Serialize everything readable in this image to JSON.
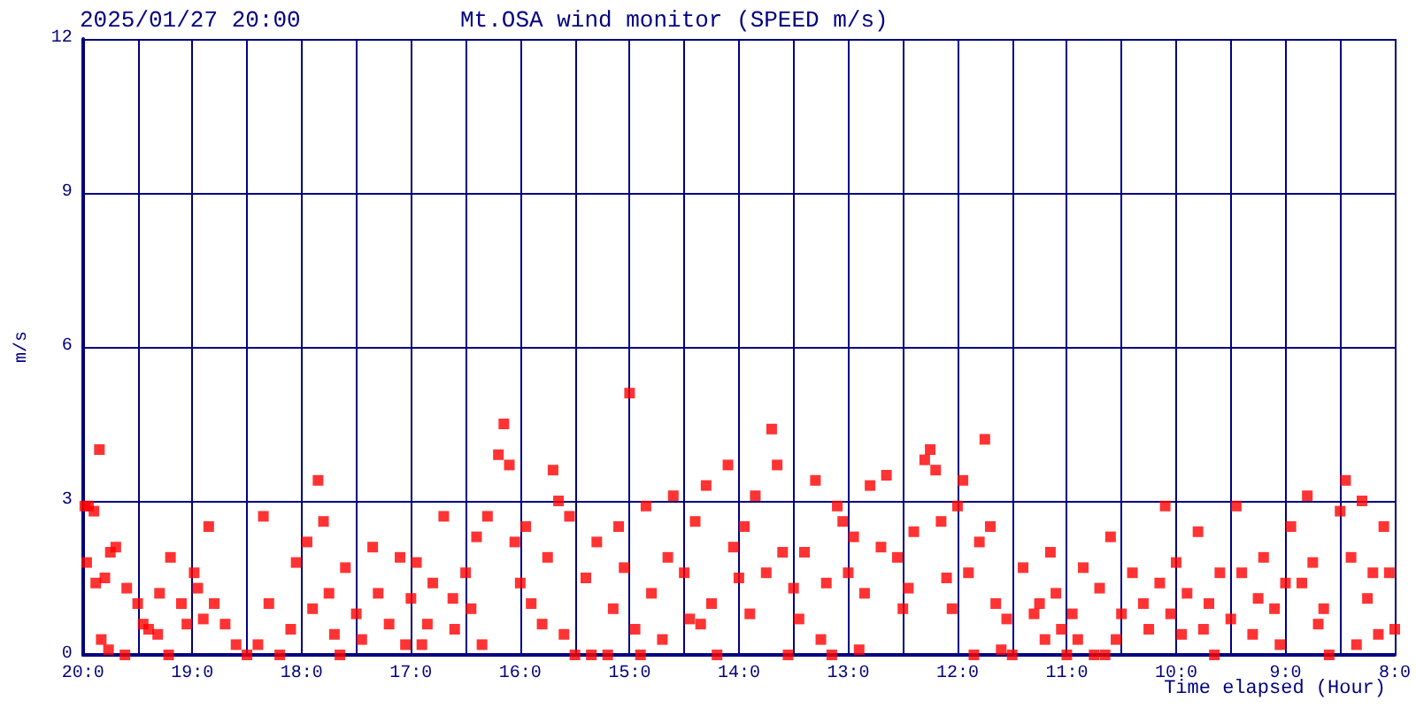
{
  "chart_data": {
    "type": "scatter",
    "title": "Mt.OSA wind monitor (SPEED m/s)",
    "subtitle": "2025/01/27 20:00",
    "xlabel": "Time elapsed (Hour)",
    "ylabel": "m/s",
    "xlim": [
      "2025-01-27T20:00",
      "2025-01-27T08:00"
    ],
    "xticks": [
      {
        "value": "2025-01-27T20:00",
        "label": "20:0"
      },
      {
        "value": "2025-01-27T19:30",
        "label": null
      },
      {
        "value": "2025-01-27T19:00",
        "label": "19:0"
      },
      {
        "value": "2025-01-27T18:30",
        "label": null
      },
      {
        "value": "2025-01-27T18:00",
        "label": "18:0"
      },
      {
        "value": "2025-01-27T17:30",
        "label": null
      },
      {
        "value": "2025-01-27T17:00",
        "label": "17:0"
      },
      {
        "value": "2025-01-27T16:30",
        "label": null
      },
      {
        "value": "2025-01-27T16:00",
        "label": "16:0"
      },
      {
        "value": "2025-01-27T15:30",
        "label": null
      },
      {
        "value": "2025-01-27T15:00",
        "label": "15:0"
      },
      {
        "value": "2025-01-27T14:30",
        "label": null
      },
      {
        "value": "2025-01-27T14:00",
        "label": "14:0"
      },
      {
        "value": "2025-01-27T13:30",
        "label": null
      },
      {
        "value": "2025-01-27T13:00",
        "label": "13:0"
      },
      {
        "value": "2025-01-27T12:30",
        "label": null
      },
      {
        "value": "2025-01-27T12:00",
        "label": "12:0"
      },
      {
        "value": "2025-01-27T11:30",
        "label": null
      },
      {
        "value": "2025-01-27T11:00",
        "label": "11:0"
      },
      {
        "value": "2025-01-27T10:30",
        "label": null
      },
      {
        "value": "2025-01-27T10:00",
        "label": "10:0"
      },
      {
        "value": "2025-01-27T09:30",
        "label": null
      },
      {
        "value": "2025-01-27T09:00",
        "label": "9:0"
      },
      {
        "value": "2025-01-27T08:30",
        "label": null
      },
      {
        "value": "2025-01-27T08:00",
        "label": "8:0"
      }
    ],
    "ylim": [
      0,
      12
    ],
    "yticks": [
      0,
      3,
      6,
      9,
      12
    ],
    "grid": true,
    "marker": "square",
    "series": [
      {
        "color": "#ff0000",
        "x": [
          "2025-01-27T19:59",
          "2025-01-27T19:57",
          "2025-01-27T19:54",
          "2025-01-27T19:51",
          "2025-01-27T19:58",
          "2025-01-27T19:53",
          "2025-01-27T19:48",
          "2025-01-27T19:45",
          "2025-01-27T19:42",
          "2025-01-27T19:36",
          "2025-01-27T19:30",
          "2025-01-27T19:24",
          "2025-01-27T19:18",
          "2025-01-27T19:12",
          "2025-01-27T19:06",
          "2025-01-27T19:50",
          "2025-01-27T19:46",
          "2025-01-27T19:37",
          "2025-01-27T19:27",
          "2025-01-27T19:19",
          "2025-01-27T19:13",
          "2025-01-27T19:03",
          "2025-01-27T18:57",
          "2025-01-27T18:54",
          "2025-01-27T18:51",
          "2025-01-27T18:48",
          "2025-01-27T18:42",
          "2025-01-27T18:36",
          "2025-01-27T18:30",
          "2025-01-27T18:24",
          "2025-01-27T18:21",
          "2025-01-27T18:18",
          "2025-01-27T18:12",
          "2025-01-27T18:06",
          "2025-01-27T18:03",
          "2025-01-27T18:59",
          "2025-01-27T17:57",
          "2025-01-27T17:51",
          "2025-01-27T17:48",
          "2025-01-27T17:45",
          "2025-01-27T17:42",
          "2025-01-27T17:36",
          "2025-01-27T17:30",
          "2025-01-27T17:27",
          "2025-01-27T17:21",
          "2025-01-27T17:18",
          "2025-01-27T17:12",
          "2025-01-27T17:06",
          "2025-01-27T17:03",
          "2025-01-27T17:00",
          "2025-01-27T17:54",
          "2025-01-27T17:39",
          "2025-01-27T16:57",
          "2025-01-27T16:51",
          "2025-01-27T16:48",
          "2025-01-27T16:42",
          "2025-01-27T16:36",
          "2025-01-27T16:30",
          "2025-01-27T16:27",
          "2025-01-27T16:24",
          "2025-01-27T16:18",
          "2025-01-27T16:12",
          "2025-01-27T16:09",
          "2025-01-27T16:06",
          "2025-01-27T16:03",
          "2025-01-27T16:00",
          "2025-01-27T16:21",
          "2025-01-27T16:37",
          "2025-01-27T16:54",
          "2025-01-27T15:57",
          "2025-01-27T15:54",
          "2025-01-27T15:48",
          "2025-01-27T15:42",
          "2025-01-27T15:36",
          "2025-01-27T15:33",
          "2025-01-27T15:30",
          "2025-01-27T15:24",
          "2025-01-27T15:18",
          "2025-01-27T15:12",
          "2025-01-27T15:06",
          "2025-01-27T15:03",
          "2025-01-27T15:00",
          "2025-01-27T15:45",
          "2025-01-27T15:39",
          "2025-01-27T15:21",
          "2025-01-27T15:09",
          "2025-01-27T14:57",
          "2025-01-27T14:51",
          "2025-01-27T14:48",
          "2025-01-27T14:42",
          "2025-01-27T14:36",
          "2025-01-27T14:30",
          "2025-01-27T14:27",
          "2025-01-27T14:24",
          "2025-01-27T14:18",
          "2025-01-27T14:15",
          "2025-01-27T14:12",
          "2025-01-27T14:06",
          "2025-01-27T14:03",
          "2025-01-27T14:00",
          "2025-01-27T14:54",
          "2025-01-27T14:39",
          "2025-01-27T14:21",
          "2025-01-27T13:57",
          "2025-01-27T13:54",
          "2025-01-27T13:51",
          "2025-01-27T13:45",
          "2025-01-27T13:42",
          "2025-01-27T13:39",
          "2025-01-27T13:36",
          "2025-01-27T13:30",
          "2025-01-27T13:27",
          "2025-01-27T13:24",
          "2025-01-27T13:18",
          "2025-01-27T13:12",
          "2025-01-27T13:09",
          "2025-01-27T13:06",
          "2025-01-27T13:03",
          "2025-01-27T13:00",
          "2025-01-27T13:33",
          "2025-01-27T13:15",
          "2025-01-27T12:57",
          "2025-01-27T12:51",
          "2025-01-27T12:48",
          "2025-01-27T12:42",
          "2025-01-27T12:39",
          "2025-01-27T12:33",
          "2025-01-27T12:30",
          "2025-01-27T12:24",
          "2025-01-27T12:18",
          "2025-01-27T12:15",
          "2025-01-27T12:12",
          "2025-01-27T12:09",
          "2025-01-27T12:06",
          "2025-01-27T12:03",
          "2025-01-27T12:00",
          "2025-01-27T12:54",
          "2025-01-27T12:27",
          "2025-01-27T11:57",
          "2025-01-27T11:54",
          "2025-01-27T11:51",
          "2025-01-27T11:48",
          "2025-01-27T11:45",
          "2025-01-27T11:42",
          "2025-01-27T11:39",
          "2025-01-27T11:36",
          "2025-01-27T11:30",
          "2025-01-27T11:24",
          "2025-01-27T11:18",
          "2025-01-27T11:12",
          "2025-01-27T11:09",
          "2025-01-27T11:06",
          "2025-01-27T11:03",
          "2025-01-27T11:00",
          "2025-01-27T11:33",
          "2025-01-27T11:15",
          "2025-01-27T10:57",
          "2025-01-27T10:51",
          "2025-01-27T10:45",
          "2025-01-27T10:42",
          "2025-01-27T10:36",
          "2025-01-27T10:33",
          "2025-01-27T10:30",
          "2025-01-27T10:24",
          "2025-01-27T10:18",
          "2025-01-27T10:15",
          "2025-01-27T10:09",
          "2025-01-27T10:06",
          "2025-01-27T10:03",
          "2025-01-27T10:00",
          "2025-01-27T10:54",
          "2025-01-27T10:39",
          "2025-01-27T09:57",
          "2025-01-27T09:54",
          "2025-01-27T09:48",
          "2025-01-27T09:42",
          "2025-01-27T09:39",
          "2025-01-27T09:36",
          "2025-01-27T09:30",
          "2025-01-27T09:27",
          "2025-01-27T09:24",
          "2025-01-27T09:18",
          "2025-01-27T09:12",
          "2025-01-27T09:06",
          "2025-01-27T09:03",
          "2025-01-27T09:00",
          "2025-01-27T09:45",
          "2025-01-27T09:15",
          "2025-01-27T08:57",
          "2025-01-27T08:51",
          "2025-01-27T08:48",
          "2025-01-27T08:45",
          "2025-01-27T08:42",
          "2025-01-27T08:36",
          "2025-01-27T08:30",
          "2025-01-27T08:27",
          "2025-01-27T08:24",
          "2025-01-27T08:18",
          "2025-01-27T08:15",
          "2025-01-27T08:12",
          "2025-01-27T08:09",
          "2025-01-27T08:06",
          "2025-01-27T08:03",
          "2025-01-27T08:00",
          "2025-01-27T08:39",
          "2025-01-27T08:21"
        ],
        "values": [
          2.9,
          2.9,
          2.8,
          4.0,
          1.8,
          1.4,
          1.5,
          2.0,
          2.1,
          1.3,
          1.0,
          0.5,
          1.2,
          1.9,
          1.0,
          0.3,
          0.1,
          0.0,
          0.6,
          0.4,
          0.0,
          0.6,
          1.3,
          0.7,
          2.5,
          1.0,
          0.6,
          0.2,
          0.0,
          0.2,
          2.7,
          1.0,
          0.0,
          0.5,
          1.8,
          1.6,
          2.2,
          3.4,
          2.6,
          1.2,
          0.4,
          1.7,
          0.8,
          0.3,
          2.1,
          1.2,
          0.6,
          1.9,
          0.2,
          1.1,
          0.9,
          0.0,
          1.8,
          0.6,
          1.4,
          2.7,
          0.5,
          1.6,
          0.9,
          2.3,
          2.7,
          3.9,
          4.5,
          3.7,
          2.2,
          1.4,
          0.2,
          1.1,
          0.2,
          2.5,
          1.0,
          0.6,
          3.6,
          0.4,
          2.7,
          0.0,
          1.5,
          2.2,
          0.0,
          2.5,
          1.7,
          5.1,
          1.9,
          3.0,
          0.0,
          0.9,
          0.5,
          2.9,
          1.2,
          0.3,
          3.1,
          1.6,
          0.7,
          2.6,
          3.3,
          1.0,
          0.0,
          3.7,
          2.1,
          1.5,
          0.0,
          1.9,
          0.6,
          2.5,
          0.8,
          3.1,
          1.6,
          4.4,
          3.7,
          2.0,
          1.3,
          0.7,
          2.0,
          3.4,
          1.4,
          0.0,
          2.9,
          2.6,
          1.6,
          0.0,
          0.3,
          2.3,
          1.2,
          3.3,
          2.1,
          3.5,
          1.9,
          0.9,
          2.4,
          3.8,
          4.0,
          3.6,
          2.6,
          1.5,
          0.9,
          2.9,
          0.1,
          1.3,
          3.4,
          1.6,
          0.0,
          2.2,
          4.2,
          2.5,
          1.0,
          0.1,
          0.0,
          1.7,
          0.8,
          0.3,
          2.0,
          1.2,
          0.5,
          0.0,
          0.7,
          1.0,
          0.8,
          1.7,
          0.0,
          1.3,
          2.3,
          0.3,
          0.8,
          1.6,
          1.0,
          0.5,
          1.4,
          2.9,
          0.8,
          1.8,
          0.3,
          0.0,
          0.4,
          1.2,
          2.4,
          1.0,
          0.0,
          1.6,
          0.7,
          2.9,
          1.6,
          0.4,
          1.9,
          0.9,
          0.2,
          1.4,
          0.5,
          1.1,
          2.5,
          1.4,
          3.1,
          1.8,
          0.6,
          0.0,
          2.8,
          3.4,
          1.9,
          3.0,
          1.1,
          1.6,
          0.4,
          2.5,
          1.6,
          0.5,
          0.9,
          0.2
        ]
      }
    ]
  }
}
